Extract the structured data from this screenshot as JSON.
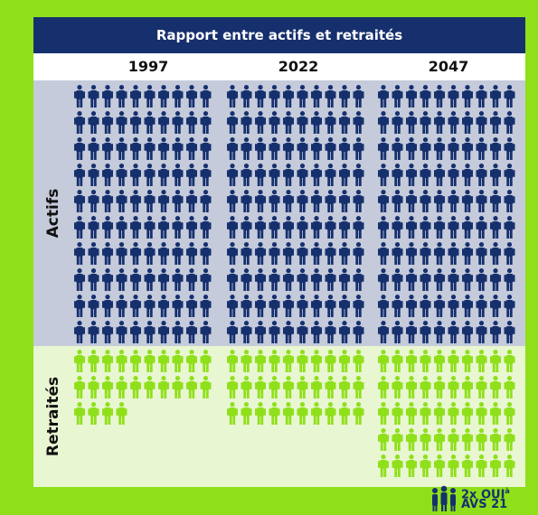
{
  "chart_data": {
    "type": "pictogram",
    "title": "Rapport entre actifs et retraités",
    "categories": [
      "1997",
      "2022",
      "2047"
    ],
    "series": [
      {
        "name": "Actifs",
        "values": [
          100,
          100,
          100
        ],
        "color": "#16306e"
      },
      {
        "name": "Retraités",
        "values": [
          24,
          30,
          50
        ],
        "color": "#8fe01a"
      }
    ],
    "icons_per_row": 10,
    "icon": "person-icon"
  },
  "logo": {
    "line1": "2x OUI",
    "superscript": "à",
    "line2": "AVS 21",
    "icon": "people-group-icon"
  }
}
